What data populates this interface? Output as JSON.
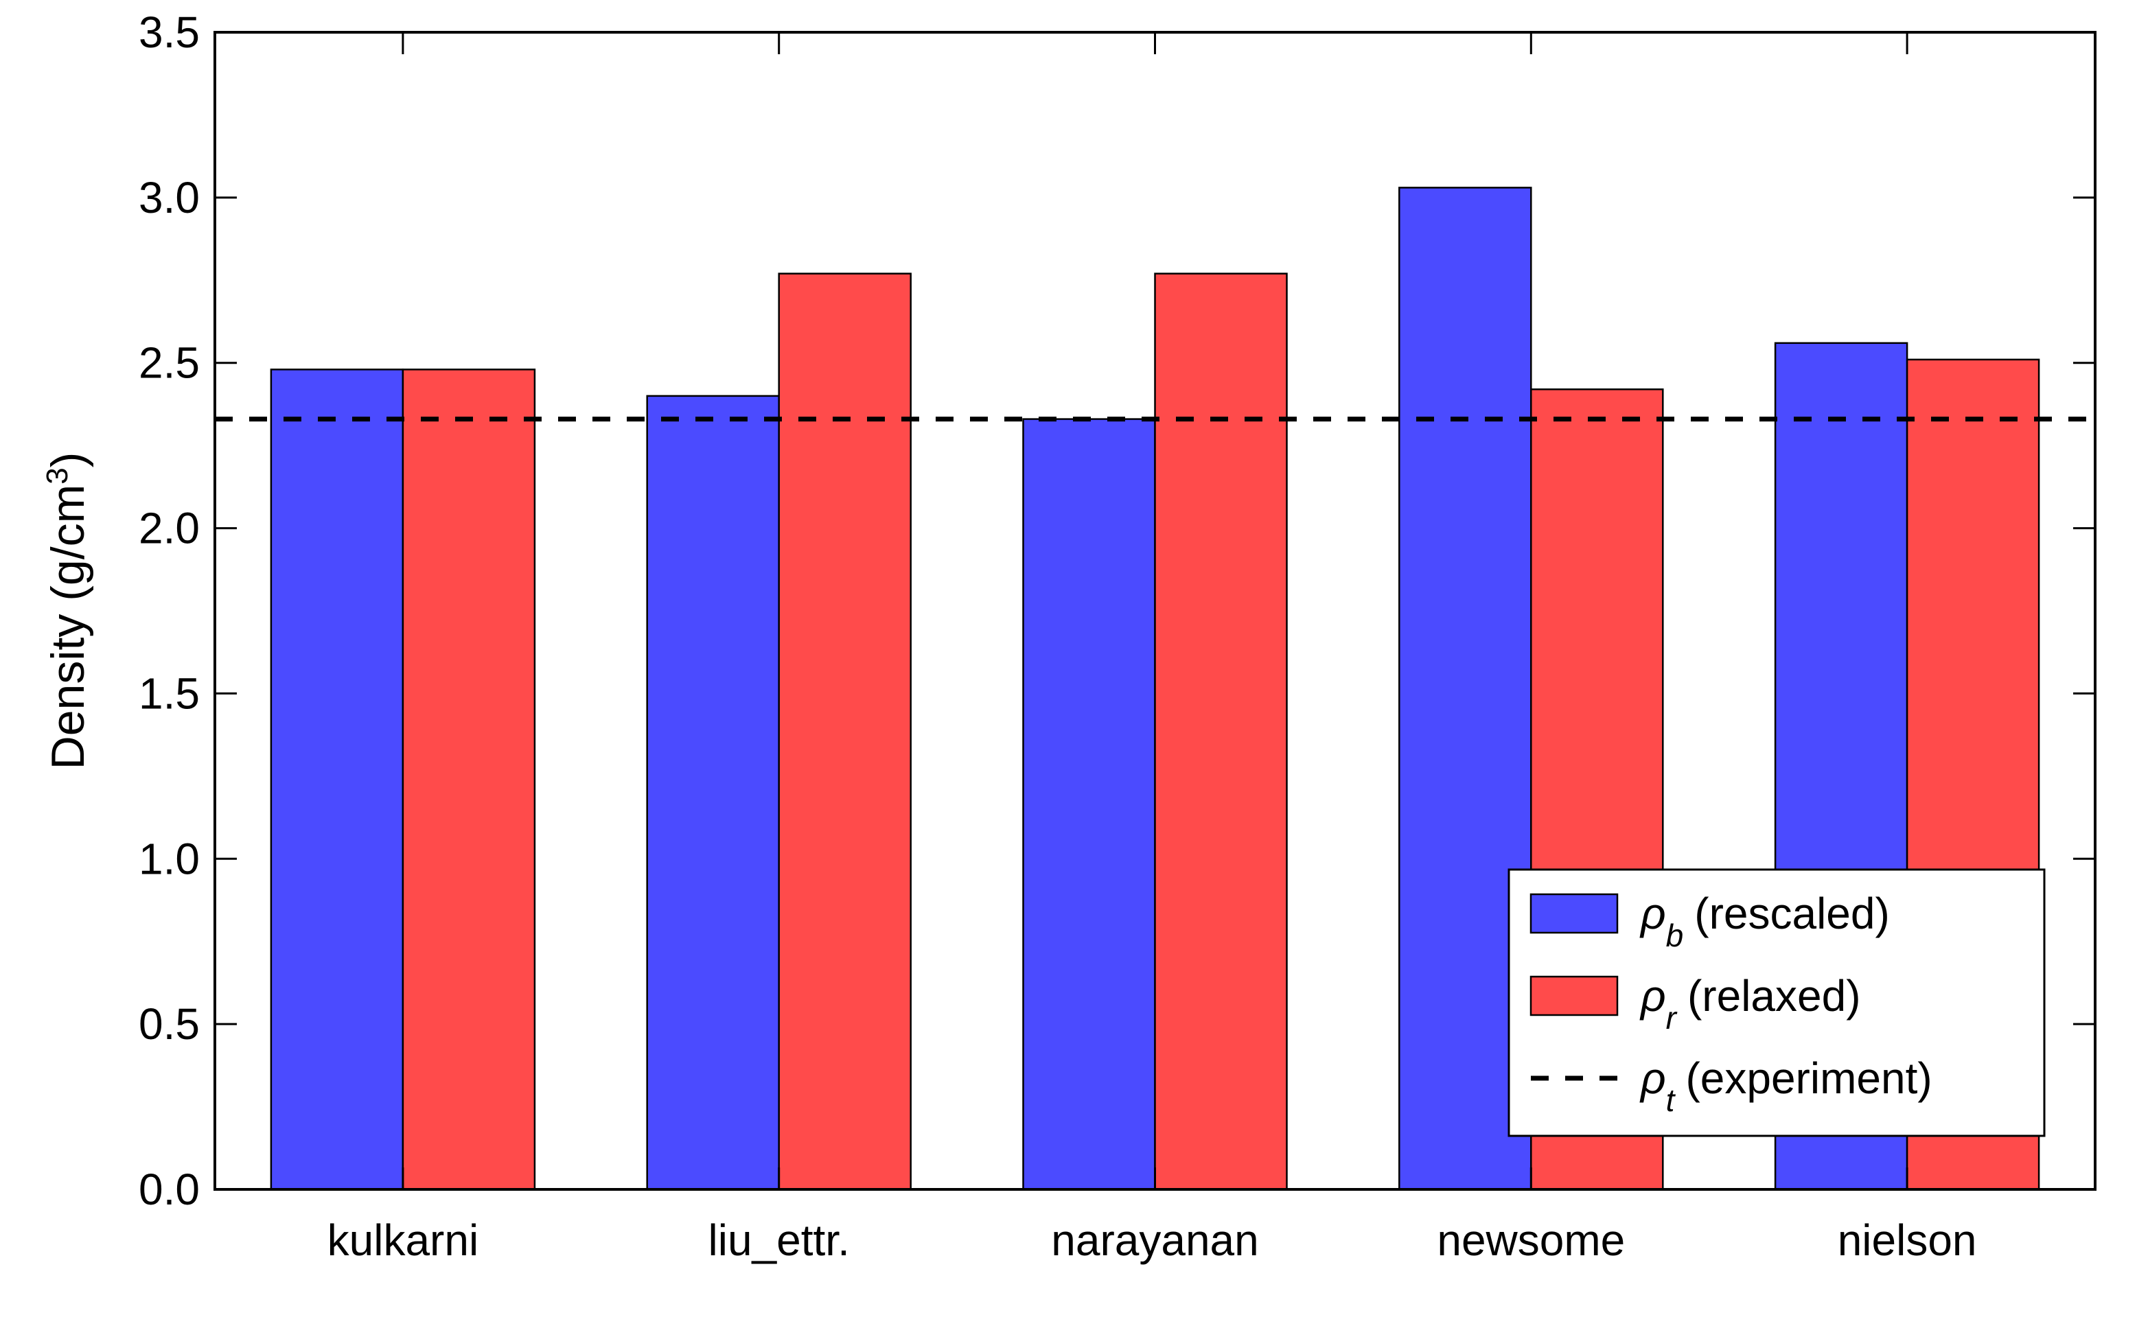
{
  "chart_data": {
    "type": "bar",
    "categories": [
      "kulkarni",
      "liu_ettr.",
      "narayanan",
      "newsome",
      "nielson"
    ],
    "series": [
      {
        "name": "ρb (rescaled)",
        "symbol": "ρ",
        "subscript": "b",
        "label": "(rescaled)",
        "color": "#4b4bff",
        "values": [
          2.48,
          2.4,
          2.33,
          3.03,
          2.56
        ]
      },
      {
        "name": "ρr (relaxed)",
        "symbol": "ρ",
        "subscript": "r",
        "label": "(relaxed)",
        "color": "#ff4b4b",
        "values": [
          2.48,
          2.77,
          2.77,
          2.42,
          2.51
        ]
      }
    ],
    "reference_line": {
      "name": "ρt (experiment)",
      "symbol": "ρ",
      "subscript": "t",
      "label": "(experiment)",
      "value": 2.33,
      "style": "dashed",
      "color": "#000000"
    },
    "ylabel": "Density (g/cm",
    "ylabel_superscript": "3",
    "ylabel_suffix": ")",
    "xlabel": "",
    "ylim": [
      0.0,
      3.5
    ],
    "yticks": [
      "0.0",
      "0.5",
      "1.0",
      "1.5",
      "2.0",
      "2.5",
      "3.0",
      "3.5"
    ],
    "grid": false,
    "legend_position": "lower-right"
  }
}
